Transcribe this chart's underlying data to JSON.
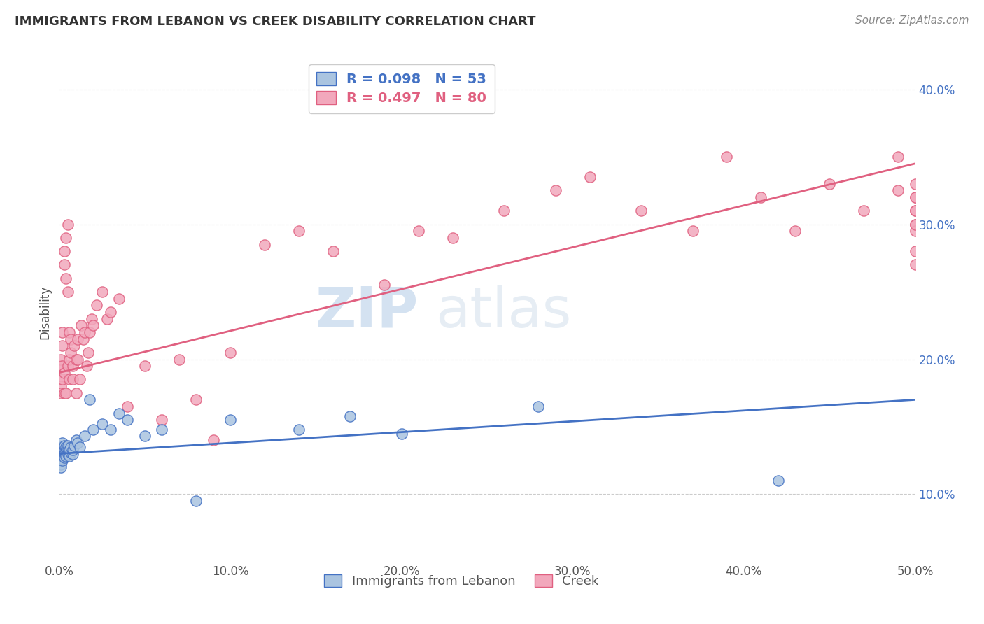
{
  "title": "IMMIGRANTS FROM LEBANON VS CREEK DISABILITY CORRELATION CHART",
  "source": "Source: ZipAtlas.com",
  "ylabel": "Disability",
  "xlim": [
    0.0,
    0.5
  ],
  "ylim": [
    0.05,
    0.42
  ],
  "xtick_labels": [
    "0.0%",
    "10.0%",
    "20.0%",
    "30.0%",
    "40.0%",
    "50.0%"
  ],
  "xtick_vals": [
    0.0,
    0.1,
    0.2,
    0.3,
    0.4,
    0.5
  ],
  "ytick_labels": [
    "10.0%",
    "20.0%",
    "30.0%",
    "40.0%"
  ],
  "ytick_vals": [
    0.1,
    0.2,
    0.3,
    0.4
  ],
  "legend_labels": [
    "Immigrants from Lebanon",
    "Creek"
  ],
  "blue_color": "#aac4e0",
  "pink_color": "#f2a8bc",
  "blue_line_color": "#4472c4",
  "pink_line_color": "#e06080",
  "title_color": "#333333",
  "source_color": "#888888",
  "watermark_zip": "ZIP",
  "watermark_atlas": "atlas",
  "legend_R_blue": "R = 0.098",
  "legend_N_blue": "N = 53",
  "legend_R_pink": "R = 0.497",
  "legend_N_pink": "N = 80",
  "blue_line_y_start": 0.13,
  "blue_line_y_end": 0.17,
  "pink_line_y_start": 0.19,
  "pink_line_y_end": 0.345,
  "blue_scatter_x": [
    0.001,
    0.001,
    0.001,
    0.001,
    0.001,
    0.001,
    0.001,
    0.001,
    0.001,
    0.002,
    0.002,
    0.002,
    0.002,
    0.002,
    0.002,
    0.003,
    0.003,
    0.003,
    0.003,
    0.003,
    0.004,
    0.004,
    0.004,
    0.004,
    0.005,
    0.005,
    0.005,
    0.006,
    0.006,
    0.007,
    0.007,
    0.008,
    0.008,
    0.009,
    0.01,
    0.011,
    0.012,
    0.015,
    0.018,
    0.02,
    0.025,
    0.03,
    0.035,
    0.04,
    0.05,
    0.06,
    0.08,
    0.1,
    0.14,
    0.17,
    0.2,
    0.28,
    0.42
  ],
  "blue_scatter_y": [
    0.13,
    0.132,
    0.128,
    0.135,
    0.127,
    0.125,
    0.133,
    0.122,
    0.12,
    0.131,
    0.129,
    0.134,
    0.126,
    0.138,
    0.125,
    0.128,
    0.133,
    0.136,
    0.13,
    0.127,
    0.132,
    0.129,
    0.135,
    0.128,
    0.134,
    0.13,
    0.136,
    0.133,
    0.128,
    0.131,
    0.135,
    0.13,
    0.133,
    0.136,
    0.14,
    0.138,
    0.135,
    0.143,
    0.17,
    0.148,
    0.152,
    0.148,
    0.16,
    0.155,
    0.143,
    0.148,
    0.095,
    0.155,
    0.148,
    0.158,
    0.145,
    0.165,
    0.11
  ],
  "pink_scatter_x": [
    0.001,
    0.001,
    0.001,
    0.001,
    0.001,
    0.002,
    0.002,
    0.002,
    0.002,
    0.003,
    0.003,
    0.003,
    0.003,
    0.004,
    0.004,
    0.004,
    0.005,
    0.005,
    0.005,
    0.006,
    0.006,
    0.006,
    0.007,
    0.007,
    0.008,
    0.008,
    0.009,
    0.01,
    0.01,
    0.011,
    0.011,
    0.012,
    0.013,
    0.014,
    0.015,
    0.016,
    0.017,
    0.018,
    0.019,
    0.02,
    0.022,
    0.025,
    0.028,
    0.03,
    0.035,
    0.04,
    0.05,
    0.06,
    0.07,
    0.08,
    0.09,
    0.1,
    0.12,
    0.14,
    0.16,
    0.19,
    0.21,
    0.23,
    0.26,
    0.29,
    0.31,
    0.34,
    0.37,
    0.39,
    0.41,
    0.43,
    0.45,
    0.47,
    0.49,
    0.49,
    0.5,
    0.5,
    0.5,
    0.5,
    0.5,
    0.5,
    0.5,
    0.5,
    0.5,
    0.5
  ],
  "pink_scatter_y": [
    0.185,
    0.195,
    0.18,
    0.2,
    0.175,
    0.21,
    0.185,
    0.195,
    0.22,
    0.19,
    0.28,
    0.27,
    0.175,
    0.26,
    0.29,
    0.175,
    0.25,
    0.3,
    0.195,
    0.2,
    0.185,
    0.22,
    0.205,
    0.215,
    0.195,
    0.185,
    0.21,
    0.2,
    0.175,
    0.215,
    0.2,
    0.185,
    0.225,
    0.215,
    0.22,
    0.195,
    0.205,
    0.22,
    0.23,
    0.225,
    0.24,
    0.25,
    0.23,
    0.235,
    0.245,
    0.165,
    0.195,
    0.155,
    0.2,
    0.17,
    0.14,
    0.205,
    0.285,
    0.295,
    0.28,
    0.255,
    0.295,
    0.29,
    0.31,
    0.325,
    0.335,
    0.31,
    0.295,
    0.35,
    0.32,
    0.295,
    0.33,
    0.31,
    0.325,
    0.35,
    0.32,
    0.27,
    0.31,
    0.3,
    0.28,
    0.295,
    0.3,
    0.32,
    0.31,
    0.33
  ]
}
